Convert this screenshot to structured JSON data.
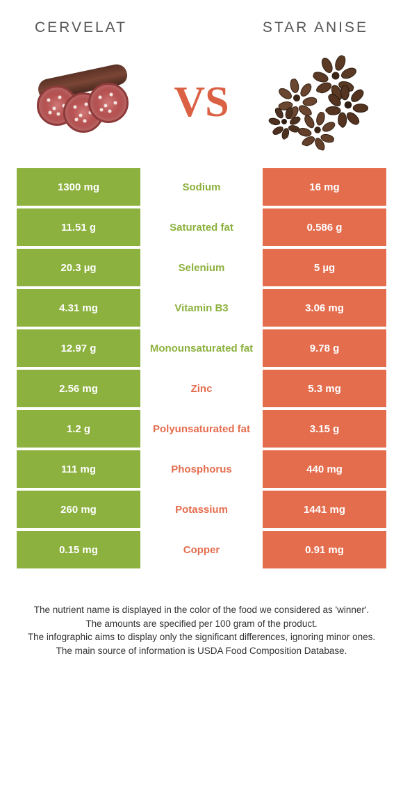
{
  "left_color": "#8cb13e",
  "right_color": "#e46d4e",
  "food_left": "CERVELAT",
  "food_right": "STAR ANISE",
  "vs": "VS",
  "rows": [
    {
      "left": "1300 mg",
      "label": "Sodium",
      "right": "16 mg",
      "winner": "left"
    },
    {
      "left": "11.51 g",
      "label": "Saturated fat",
      "right": "0.586 g",
      "winner": "left"
    },
    {
      "left": "20.3 µg",
      "label": "Selenium",
      "right": "5 µg",
      "winner": "left"
    },
    {
      "left": "4.31 mg",
      "label": "Vitamin B3",
      "right": "3.06 mg",
      "winner": "left"
    },
    {
      "left": "12.97 g",
      "label": "Monounsaturated fat",
      "right": "9.78 g",
      "winner": "left"
    },
    {
      "left": "2.56 mg",
      "label": "Zinc",
      "right": "5.3 mg",
      "winner": "right"
    },
    {
      "left": "1.2 g",
      "label": "Polyunsaturated fat",
      "right": "3.15 g",
      "winner": "right"
    },
    {
      "left": "111 mg",
      "label": "Phosphorus",
      "right": "440 mg",
      "winner": "right"
    },
    {
      "left": "260 mg",
      "label": "Potassium",
      "right": "1441 mg",
      "winner": "right"
    },
    {
      "left": "0.15 mg",
      "label": "Copper",
      "right": "0.91 mg",
      "winner": "right"
    }
  ],
  "footer": [
    "The nutrient name is displayed in the color of the food we considered as 'winner'.",
    "The amounts are specified per 100 gram of the product.",
    "The infographic aims to display only the significant differences, ignoring minor ones.",
    "The main source of information is USDA Food Composition Database."
  ]
}
